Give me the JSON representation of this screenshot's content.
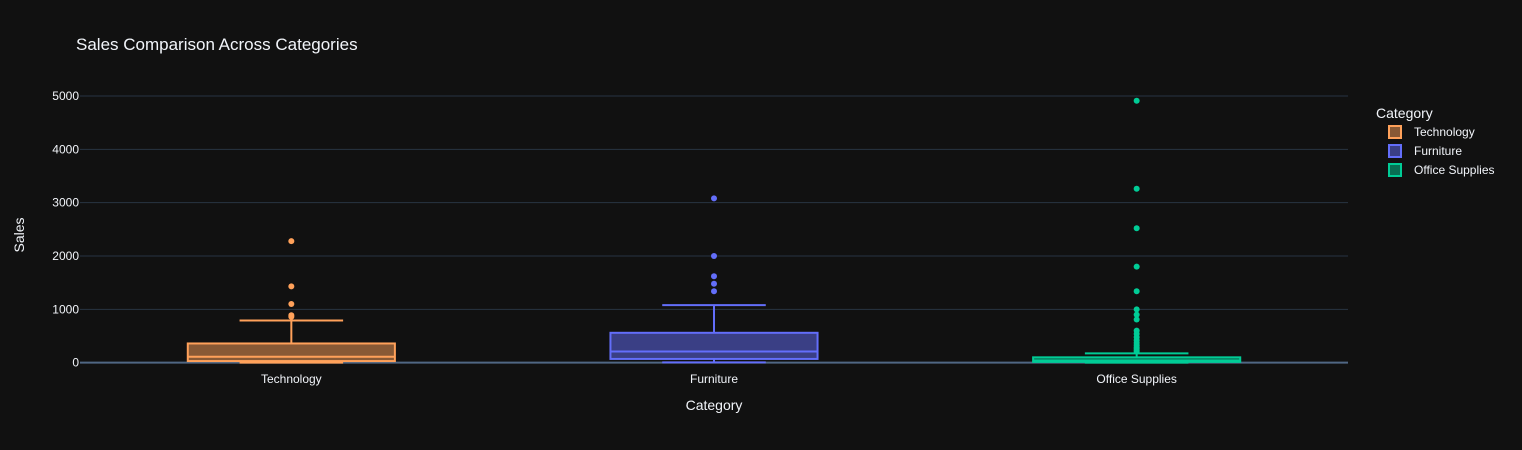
{
  "chart_data": {
    "type": "box",
    "title": "Sales Comparison Across Categories",
    "xlabel": "Category",
    "ylabel": "Sales",
    "ylim": [
      -100,
      5300
    ],
    "yticks": [
      0,
      1000,
      2000,
      3000,
      4000,
      5000
    ],
    "grid": true,
    "legend": {
      "title": "Category",
      "placement": "right"
    },
    "categories": [
      "Technology",
      "Furniture",
      "Office Supplies"
    ],
    "series": [
      {
        "name": "Technology",
        "color": "#FFA15A",
        "whisker_low": 0,
        "q1": 30,
        "median": 110,
        "q3": 360,
        "whisker_high": 790,
        "outliers": [
          2280,
          1430,
          1100,
          890,
          860
        ]
      },
      {
        "name": "Furniture",
        "color": "#636EFA",
        "whisker_low": 5,
        "q1": 70,
        "median": 210,
        "q3": 560,
        "whisker_high": 1080,
        "outliers": [
          3080,
          2000,
          1620,
          1480,
          1340
        ]
      },
      {
        "name": "Office Supplies",
        "color": "#00CC96",
        "whisker_low": 0,
        "q1": 15,
        "median": 40,
        "q3": 100,
        "whisker_high": 175,
        "outliers": [
          4910,
          3260,
          2520,
          1800,
          1340,
          1000,
          900,
          810,
          600,
          540,
          480,
          420,
          370,
          330,
          290,
          260,
          230,
          210
        ]
      }
    ]
  }
}
